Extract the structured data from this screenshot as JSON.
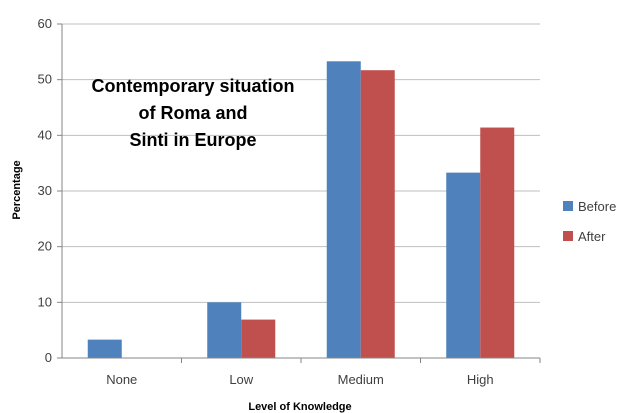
{
  "chart_data": {
    "type": "bar",
    "title_lines": [
      "Contemporary situation",
      "of Roma and",
      "Sinti in Europe"
    ],
    "xlabel": "Level of Knowledge",
    "ylabel": "Percentage",
    "categories": [
      "None",
      "Low",
      "Medium",
      "High"
    ],
    "series": [
      {
        "name": "Before",
        "values": [
          3.3,
          10,
          53.3,
          33.3
        ],
        "color": "#4f81bd"
      },
      {
        "name": "After",
        "values": [
          0,
          6.9,
          51.7,
          41.4
        ],
        "color": "#c0504d"
      }
    ],
    "ylim": [
      0,
      60
    ],
    "yticks": [
      0,
      10,
      20,
      30,
      40,
      50,
      60
    ],
    "grid": true,
    "legend_position": "right"
  }
}
